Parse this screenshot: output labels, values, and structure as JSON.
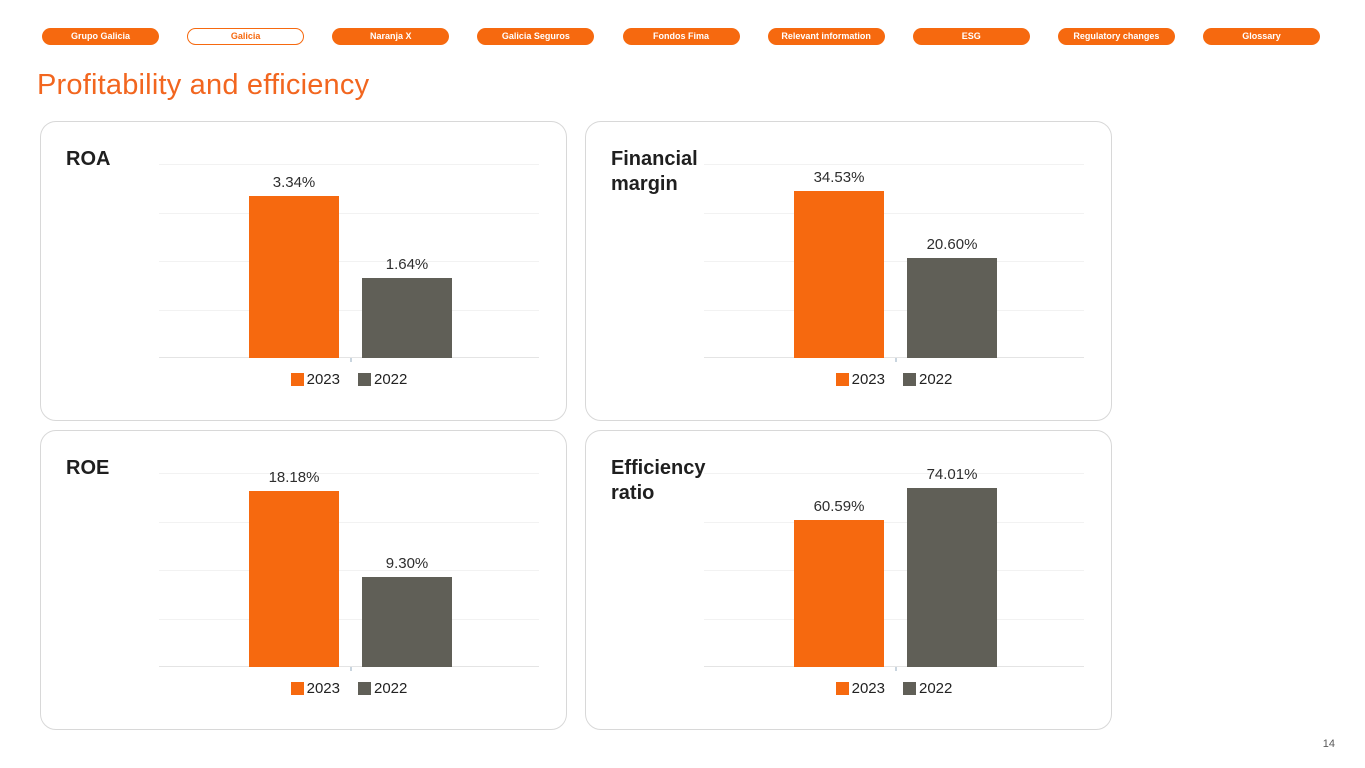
{
  "nav": {
    "tabs": [
      {
        "label": "Grupo Galicia",
        "selected": false
      },
      {
        "label": "Galicia",
        "selected": true
      },
      {
        "label": "Naranja X",
        "selected": false
      },
      {
        "label": "Galicia Seguros",
        "selected": false
      },
      {
        "label": "Fondos Fima",
        "selected": false
      },
      {
        "label": "Relevant information",
        "selected": false
      },
      {
        "label": "ESG",
        "selected": false
      },
      {
        "label": "Regulatory changes",
        "selected": false
      },
      {
        "label": "Glossary",
        "selected": false
      }
    ]
  },
  "page": {
    "title": "Profitability and efficiency",
    "page_number": "14"
  },
  "colors": {
    "series": [
      "#F6690F",
      "#605F57"
    ],
    "accent_orange": "#F6690F",
    "title_orange": "#F2661F",
    "bar_gray": "#605F57",
    "gridline": "#F2F2F2",
    "baseline": "#E4E4E4"
  },
  "chart_data": [
    {
      "type": "bar",
      "title": "ROA",
      "categories": [
        "2023",
        "2022"
      ],
      "values": [
        3.34,
        1.64
      ],
      "value_labels": [
        "3.34%",
        "1.64%"
      ],
      "ylim": [
        0,
        4
      ],
      "grid": true,
      "legend": [
        "2023",
        "2022"
      ],
      "legend_position": "bottom"
    },
    {
      "type": "bar",
      "title": "Financial\nmargin",
      "categories": [
        "2023",
        "2022"
      ],
      "values": [
        34.53,
        20.6
      ],
      "value_labels": [
        "34.53%",
        "20.60%"
      ],
      "ylim": [
        0,
        40
      ],
      "grid": true,
      "legend": [
        "2023",
        "2022"
      ],
      "legend_position": "bottom"
    },
    {
      "type": "bar",
      "title": "ROE",
      "categories": [
        "2023",
        "2022"
      ],
      "values": [
        18.18,
        9.3
      ],
      "value_labels": [
        "18.18%",
        "9.30%"
      ],
      "ylim": [
        0,
        20
      ],
      "grid": true,
      "legend": [
        "2023",
        "2022"
      ],
      "legend_position": "bottom"
    },
    {
      "type": "bar",
      "title": "Efficiency\nratio",
      "categories": [
        "2023",
        "2022"
      ],
      "values": [
        60.59,
        74.01
      ],
      "value_labels": [
        "60.59%",
        "74.01%"
      ],
      "ylim": [
        0,
        80
      ],
      "grid": true,
      "legend": [
        "2023",
        "2022"
      ],
      "legend_position": "bottom"
    }
  ]
}
